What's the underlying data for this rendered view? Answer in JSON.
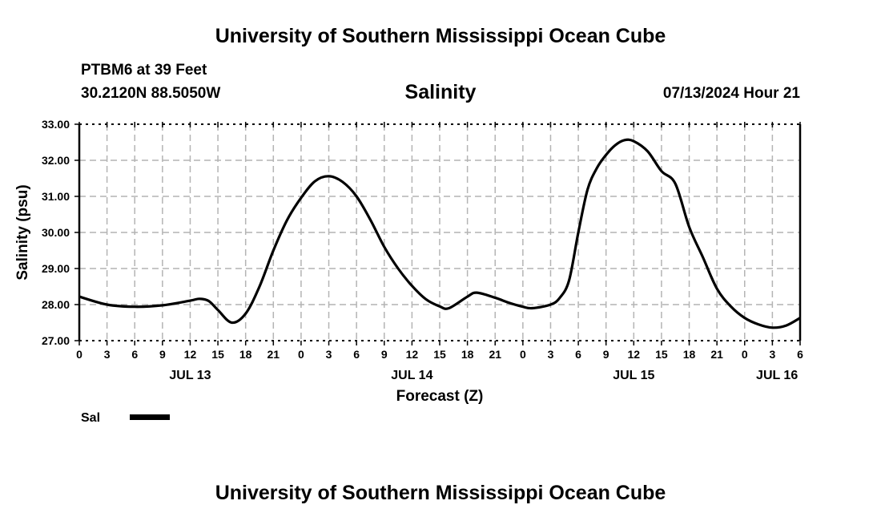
{
  "header": {
    "title": "University of Southern Mississippi Ocean Cube",
    "station": "PTBM6 at 39 Feet",
    "coordinates": "30.2120N  88.5050W",
    "datetime": "07/13/2024 Hour 21"
  },
  "footer": {
    "title": "University of Southern Mississippi Ocean Cube"
  },
  "chart_data": {
    "type": "line",
    "title": "Salinity",
    "xlabel": "Forecast (Z)",
    "ylabel": "Salinity (psu)",
    "xlim": [
      0,
      78
    ],
    "ylim": [
      27,
      33
    ],
    "grid": true,
    "x_unit": "forecast hours from JUL 13 00Z",
    "xticks": [
      0,
      3,
      6,
      9,
      12,
      15,
      18,
      21,
      24,
      27,
      30,
      33,
      36,
      39,
      42,
      45,
      48,
      51,
      54,
      57,
      60,
      63,
      66,
      69,
      72,
      75,
      78
    ],
    "xtick_labels": [
      "0",
      "3",
      "6",
      "9",
      "12",
      "15",
      "18",
      "21",
      "0",
      "3",
      "6",
      "9",
      "12",
      "15",
      "18",
      "21",
      "0",
      "3",
      "6",
      "9",
      "12",
      "15",
      "18",
      "21",
      "0",
      "3",
      "6"
    ],
    "yticks": [
      27,
      28,
      29,
      30,
      31,
      32,
      33
    ],
    "ytick_labels": [
      "27.00",
      "28.00",
      "29.00",
      "30.00",
      "31.00",
      "32.00",
      "33.00"
    ],
    "day_labels": [
      {
        "hour": 12,
        "label": "JUL 13"
      },
      {
        "hour": 36,
        "label": "JUL 14"
      },
      {
        "hour": 60,
        "label": "JUL 15"
      },
      {
        "hour": 75.5,
        "label": "JUL 16"
      }
    ],
    "legend": {
      "position": "bottom-left",
      "entries": [
        "Sal"
      ]
    },
    "series": [
      {
        "name": "Sal",
        "color": "#000000",
        "x": [
          0,
          3,
          6,
          9,
          12,
          13,
          14,
          15,
          16.5,
          18,
          19.5,
          21,
          22.5,
          24,
          25.5,
          27,
          28.5,
          30,
          31.5,
          33,
          34.5,
          36,
          37.5,
          39,
          40,
          42,
          43,
          45,
          46.5,
          48,
          49,
          51,
          52,
          53,
          54,
          55,
          56,
          57,
          58,
          59,
          60,
          61.5,
          63,
          64.5,
          66,
          67.5,
          69,
          70.5,
          72,
          73.5,
          75,
          76.5,
          78
        ],
        "values": [
          28.22,
          28.0,
          27.94,
          27.98,
          28.11,
          28.16,
          28.1,
          27.85,
          27.5,
          27.75,
          28.5,
          29.5,
          30.35,
          30.96,
          31.42,
          31.56,
          31.4,
          31.0,
          30.35,
          29.6,
          29.0,
          28.52,
          28.15,
          27.95,
          27.9,
          28.22,
          28.33,
          28.19,
          28.05,
          27.94,
          27.9,
          28.0,
          28.19,
          28.67,
          30.0,
          31.19,
          31.78,
          32.15,
          32.42,
          32.56,
          32.53,
          32.25,
          31.7,
          31.35,
          30.15,
          29.3,
          28.44,
          27.95,
          27.63,
          27.45,
          27.36,
          27.42,
          27.63
        ]
      }
    ]
  }
}
